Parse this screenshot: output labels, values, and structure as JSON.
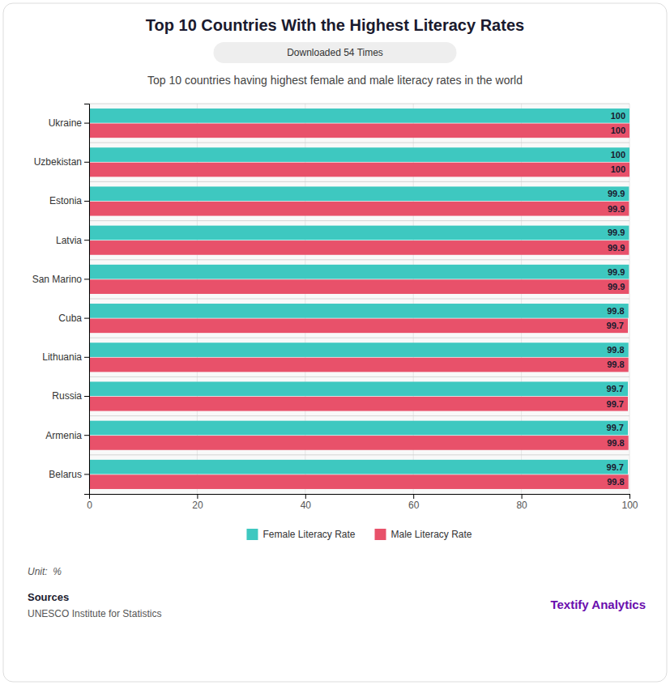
{
  "chart_data": {
    "type": "bar",
    "orientation": "horizontal",
    "title": "Top 10 Countries With the Highest Literacy Rates",
    "subtitle": "Top 10 countries having highest female and male literacy rates in the world",
    "categories": [
      "Ukraine",
      "Uzbekistan",
      "Estonia",
      "Latvia",
      "San Marino",
      "Cuba",
      "Lithuania",
      "Russia",
      "Armenia",
      "Belarus"
    ],
    "series": [
      {
        "name": "Female Literacy Rate",
        "color": "#3ec8c0",
        "values": [
          100,
          100,
          99.9,
          99.9,
          99.9,
          99.8,
          99.8,
          99.7,
          99.7,
          99.7
        ]
      },
      {
        "name": "Male Literacy Rate",
        "color": "#e8516a",
        "values": [
          100,
          100,
          99.9,
          99.9,
          99.9,
          99.7,
          99.8,
          99.7,
          99.8,
          99.8
        ]
      }
    ],
    "xlim": [
      0,
      100
    ],
    "xticks": [
      0,
      20,
      40,
      60,
      80,
      100
    ],
    "grid": true,
    "legend": "bottom",
    "data_labels": true,
    "annotations": [
      "Downloaded 54 Times",
      "Unit:  %",
      "Sources",
      "UNESCO Institute for Statistics",
      "Textify Analytics"
    ]
  }
}
